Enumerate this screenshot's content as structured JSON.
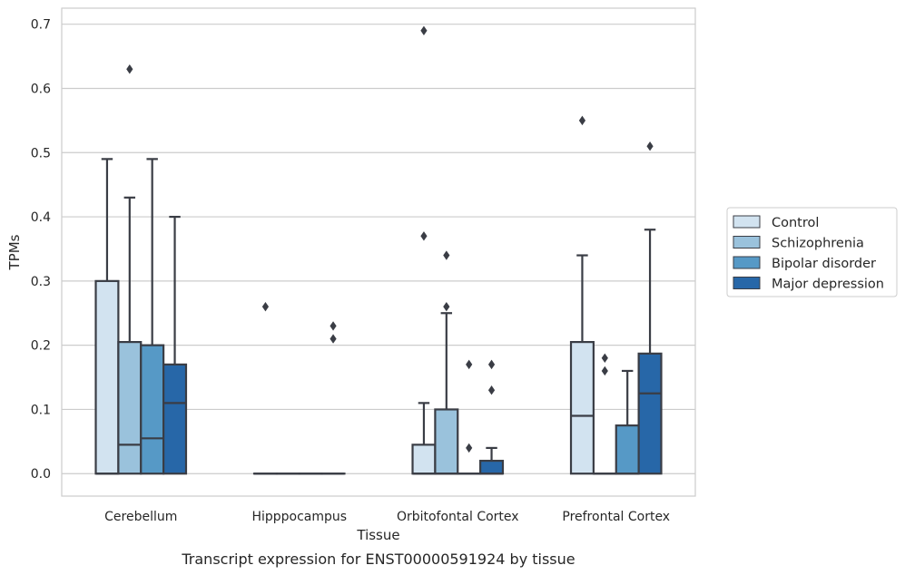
{
  "chart_data": {
    "type": "boxplot",
    "xlabel": "Tissue",
    "ylabel": "TPMs",
    "caption": "Transcript expression for ENST00000591924 by tissue",
    "ylim": [
      -0.035,
      0.725
    ],
    "yticks": [
      0.0,
      0.1,
      0.2,
      0.3,
      0.4,
      0.5,
      0.6,
      0.7
    ],
    "ytick_labels": [
      "0.0",
      "0.1",
      "0.2",
      "0.3",
      "0.4",
      "0.5",
      "0.6",
      "0.7"
    ],
    "grid": true,
    "legend_position": "right",
    "categories": [
      "Cerebellum",
      "Hipppocampus",
      "Orbitofontal Cortex",
      "Prefrontal Cortex"
    ],
    "series": [
      {
        "name": "Control",
        "color": "#d2e3f0",
        "boxes": [
          {
            "whislo": 0.0,
            "q1": 0.0,
            "med": 0.0,
            "q3": 0.3,
            "whishi": 0.49,
            "fliers": []
          },
          {
            "whislo": 0.0,
            "q1": 0.0,
            "med": 0.0,
            "q3": 0.0,
            "whishi": 0.0,
            "fliers": [
              0.26
            ]
          },
          {
            "whislo": 0.0,
            "q1": 0.0,
            "med": 0.0,
            "q3": 0.045,
            "whishi": 0.11,
            "fliers": [
              0.37,
              0.69
            ]
          },
          {
            "whislo": 0.0,
            "q1": 0.0,
            "med": 0.09,
            "q3": 0.205,
            "whishi": 0.34,
            "fliers": [
              0.55
            ]
          }
        ]
      },
      {
        "name": "Schizophrenia",
        "color": "#9ac2dc",
        "boxes": [
          {
            "whislo": 0.0,
            "q1": 0.0,
            "med": 0.045,
            "q3": 0.205,
            "whishi": 0.43,
            "fliers": [
              0.63
            ]
          },
          {
            "whislo": 0.0,
            "q1": 0.0,
            "med": 0.0,
            "q3": 0.0,
            "whishi": 0.0,
            "fliers": []
          },
          {
            "whislo": 0.0,
            "q1": 0.0,
            "med": 0.0,
            "q3": 0.1,
            "whishi": 0.25,
            "fliers": [
              0.26,
              0.34
            ]
          },
          {
            "whislo": 0.0,
            "q1": 0.0,
            "med": 0.0,
            "q3": 0.0,
            "whishi": 0.0,
            "fliers": [
              0.16,
              0.18
            ]
          }
        ]
      },
      {
        "name": "Bipolar disorder",
        "color": "#5699c6",
        "boxes": [
          {
            "whislo": 0.0,
            "q1": 0.0,
            "med": 0.055,
            "q3": 0.2,
            "whishi": 0.49,
            "fliers": []
          },
          {
            "whislo": 0.0,
            "q1": 0.0,
            "med": 0.0,
            "q3": 0.0,
            "whishi": 0.0,
            "fliers": []
          },
          {
            "whislo": 0.0,
            "q1": 0.0,
            "med": 0.0,
            "q3": 0.0,
            "whishi": 0.0,
            "fliers": [
              0.04,
              0.17
            ]
          },
          {
            "whislo": 0.0,
            "q1": 0.0,
            "med": 0.0,
            "q3": 0.075,
            "whishi": 0.16,
            "fliers": []
          }
        ]
      },
      {
        "name": "Major depression",
        "color": "#2767a8",
        "boxes": [
          {
            "whislo": 0.0,
            "q1": 0.0,
            "med": 0.11,
            "q3": 0.17,
            "whishi": 0.4,
            "fliers": []
          },
          {
            "whislo": 0.0,
            "q1": 0.0,
            "med": 0.0,
            "q3": 0.0,
            "whishi": 0.0,
            "fliers": [
              0.21,
              0.23
            ]
          },
          {
            "whislo": 0.0,
            "q1": 0.0,
            "med": 0.0,
            "q3": 0.02,
            "whishi": 0.04,
            "fliers": [
              0.13,
              0.17
            ]
          },
          {
            "whislo": 0.0,
            "q1": 0.0,
            "med": 0.125,
            "q3": 0.187,
            "whishi": 0.38,
            "fliers": [
              0.51
            ]
          }
        ]
      }
    ]
  },
  "colors": {
    "grid": "#cccccc",
    "frame": "#cccccc",
    "box_edge": "#3a3d45",
    "legend_border": "#cccccc"
  }
}
